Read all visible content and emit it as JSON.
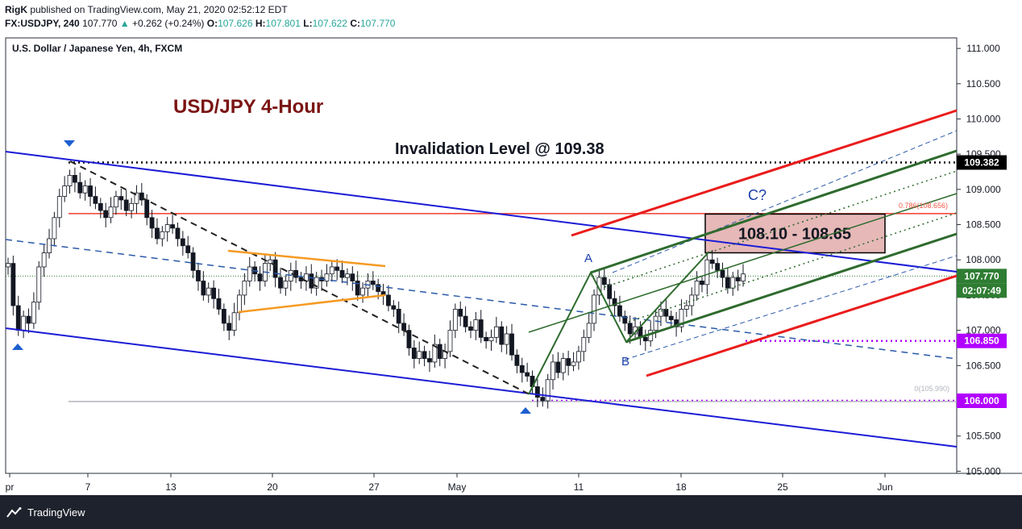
{
  "header": {
    "publisher": "RigK",
    "published_text": " published on TradingView.com, May 21, 2020 02:52:12 EDT",
    "symbol": "FX:USDJPY, 240",
    "last": "107.770",
    "change": "+0.262 (+0.24%)",
    "o_label": "O:",
    "o": "107.626",
    "h_label": "H:",
    "h": "107.801",
    "l_label": "L:",
    "l": "107.622",
    "c_label": "C:",
    "c": "107.770"
  },
  "chart_data": {
    "type": "candlestick",
    "instrument_label": "U.S. Dollar / Japanese Yen, 4h, FXCM",
    "title": "USD/JPY 4-Hour",
    "y_ticks": [
      "111.000",
      "110.500",
      "110.000",
      "109.500",
      "109.000",
      "108.500",
      "108.000",
      "107.500",
      "107.000",
      "106.500",
      "106.000",
      "105.500",
      "105.000"
    ],
    "ylim": [
      104.97,
      111.15
    ],
    "x_ticks": [
      "pr",
      "7",
      "13",
      "20",
      "27",
      "May",
      "11",
      "18",
      "25",
      "Jun"
    ],
    "annotations": {
      "invalidation_text": "Invalidation Level @ 109.38",
      "target_zone_text": "108.10 - 108.65",
      "target_zone": [
        108.1,
        108.65
      ],
      "fib_786_label": "0.786(108.656)",
      "fib_0_label": "0(105.990)",
      "wave_a": "A",
      "wave_b": "B",
      "wave_c": "C?"
    },
    "price_labels": {
      "invalidation": "109.382",
      "current": "107.770",
      "countdown": "02:07:49",
      "support_1": "106.850",
      "support_2": "106.000"
    },
    "levels": {
      "invalidation": 109.382,
      "fib_786": 108.656,
      "current": 107.77,
      "support_1": 106.85,
      "support_2": 106.0,
      "fib_0": 105.99
    },
    "closes": [
      107.95,
      107.35,
      107.0,
      107.2,
      107.1,
      107.4,
      107.9,
      108.1,
      108.3,
      108.6,
      108.9,
      109.05,
      109.2,
      109.1,
      108.95,
      109.05,
      108.9,
      108.8,
      108.7,
      108.6,
      108.75,
      108.9,
      108.85,
      108.7,
      108.8,
      108.95,
      108.85,
      108.6,
      108.45,
      108.3,
      108.4,
      108.5,
      108.45,
      108.3,
      108.2,
      108.1,
      107.85,
      107.7,
      107.5,
      107.6,
      107.45,
      107.3,
      107.1,
      107.0,
      107.25,
      107.5,
      107.7,
      107.9,
      107.8,
      107.7,
      107.95,
      108.0,
      107.75,
      107.6,
      107.7,
      107.85,
      107.75,
      107.7,
      107.8,
      107.6,
      107.75,
      107.7,
      107.8,
      107.9,
      107.85,
      107.75,
      107.8,
      107.7,
      107.5,
      107.6,
      107.7,
      107.65,
      107.55,
      107.5,
      107.35,
      107.3,
      107.1,
      107.0,
      106.75,
      106.6,
      106.7,
      106.6,
      106.55,
      106.8,
      106.6,
      106.7,
      107.0,
      107.3,
      107.2,
      107.05,
      107.0,
      107.15,
      106.9,
      106.85,
      106.9,
      107.05,
      106.8,
      106.95,
      106.65,
      106.5,
      106.4,
      106.35,
      106.2,
      106.05,
      106.0,
      106.3,
      106.55,
      106.4,
      106.6,
      106.5,
      106.55,
      106.7,
      106.9,
      107.1,
      107.5,
      107.75,
      107.65,
      107.45,
      107.35,
      107.2,
      107.1,
      106.95,
      107.05,
      106.9,
      106.85,
      107.0,
      107.2,
      107.3,
      107.2,
      107.15,
      107.05,
      107.3,
      107.35,
      107.5,
      107.7,
      107.65,
      108.0,
      107.95,
      107.85,
      107.75,
      107.6,
      107.75,
      107.7,
      107.8
    ]
  }
}
